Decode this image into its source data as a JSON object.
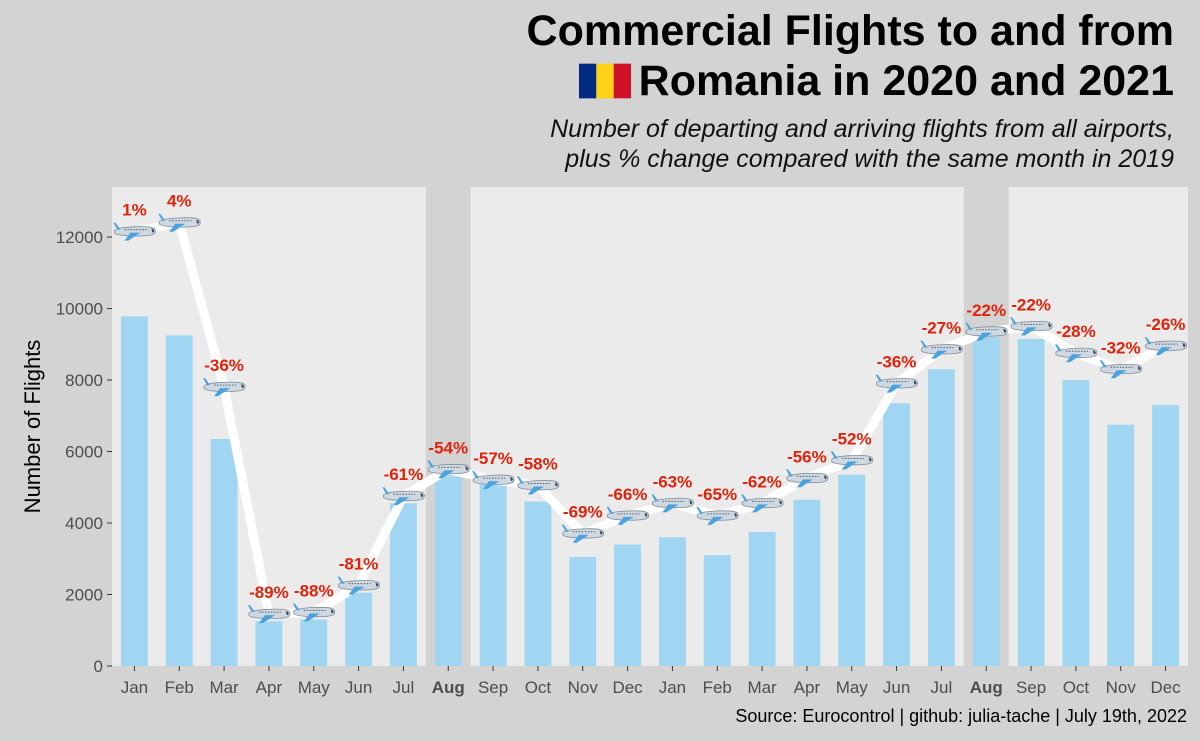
{
  "title": {
    "line1": "Commercial Flights to and from",
    "line2": "Romania in 2020 and 2021",
    "flag_icon": "romania-flag-icon"
  },
  "subtitle": {
    "line1": "Number of departing and arriving flights from all airports,",
    "line2": "plus % change compared with the same month in 2019"
  },
  "caption": "Source: Eurocontrol | github: julia-tache | July 19th, 2022",
  "colors": {
    "bar": "#a0d6f2",
    "line": "#ffffff",
    "panel": "#ebebeb",
    "highlight_panel": "#d3d3d3",
    "label": "#e2230b",
    "plane_icon": "airplane-icon"
  },
  "chart_data": {
    "type": "bar",
    "ylabel": "Number of Flights",
    "ylim": [
      0,
      13400
    ],
    "yticks": [
      0,
      2000,
      4000,
      6000,
      8000,
      10000,
      12000
    ],
    "categories": [
      "Jan",
      "Feb",
      "Mar",
      "Apr",
      "May",
      "Jun",
      "Jul",
      "Aug",
      "Sep",
      "Oct",
      "Nov",
      "Dec",
      "Jan",
      "Feb",
      "Mar",
      "Apr",
      "May",
      "Jun",
      "Jul",
      "Aug",
      "Sep",
      "Oct",
      "Nov",
      "Dec"
    ],
    "highlighted_categories": [
      7,
      19
    ],
    "series": [
      {
        "type": "bar",
        "values": [
          9780,
          9250,
          6350,
          1250,
          1300,
          2050,
          4550,
          5300,
          5100,
          4600,
          3050,
          3400,
          3600,
          3100,
          3750,
          4650,
          5350,
          7350,
          8300,
          9200,
          9150,
          8000,
          6750,
          7300
        ]
      },
      {
        "type": "line",
        "values": [
          12150,
          12400,
          7800,
          1450,
          1500,
          2250,
          4750,
          5500,
          5200,
          5050,
          3700,
          4200,
          4550,
          4200,
          4550,
          5250,
          5750,
          7900,
          8850,
          9350,
          9500,
          8750,
          8300,
          8950
        ],
        "labels": [
          "1%",
          "4%",
          "-36%",
          "-89%",
          "-88%",
          "-81%",
          "-61%",
          "-54%",
          "-57%",
          "-58%",
          "-69%",
          "-66%",
          "-63%",
          "-65%",
          "-62%",
          "-56%",
          "-52%",
          "-36%",
          "-27%",
          "-22%",
          "-22%",
          "-28%",
          "-32%",
          "-26%"
        ]
      }
    ]
  }
}
